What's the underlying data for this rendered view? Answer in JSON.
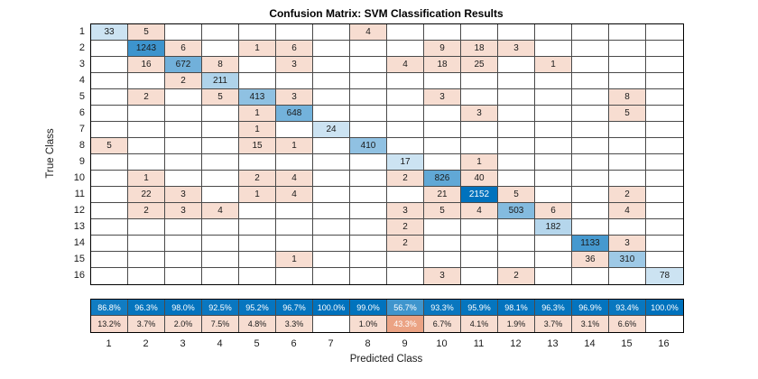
{
  "chart_data": {
    "type": "heatmap",
    "title": "Confusion Matrix: SVM Classification Results",
    "xlabel": "Predicted Class",
    "ylabel": "True Class",
    "classes": [
      "1",
      "2",
      "3",
      "4",
      "5",
      "6",
      "7",
      "8",
      "9",
      "10",
      "11",
      "12",
      "13",
      "14",
      "15",
      "16"
    ],
    "matrix": [
      [
        33,
        5,
        0,
        0,
        0,
        0,
        0,
        4,
        0,
        0,
        0,
        0,
        0,
        0,
        0,
        0
      ],
      [
        0,
        1243,
        6,
        0,
        1,
        6,
        0,
        0,
        0,
        9,
        18,
        3,
        0,
        0,
        0,
        0
      ],
      [
        0,
        16,
        672,
        8,
        0,
        3,
        0,
        0,
        4,
        18,
        25,
        0,
        1,
        0,
        0,
        0
      ],
      [
        0,
        0,
        2,
        211,
        0,
        0,
        0,
        0,
        0,
        0,
        0,
        0,
        0,
        0,
        0,
        0
      ],
      [
        0,
        2,
        0,
        5,
        413,
        3,
        0,
        0,
        0,
        3,
        0,
        0,
        0,
        0,
        8,
        0
      ],
      [
        0,
        0,
        0,
        0,
        1,
        648,
        0,
        0,
        0,
        0,
        3,
        0,
        0,
        0,
        5,
        0
      ],
      [
        0,
        0,
        0,
        0,
        1,
        0,
        24,
        0,
        0,
        0,
        0,
        0,
        0,
        0,
        0,
        0
      ],
      [
        5,
        0,
        0,
        0,
        15,
        1,
        0,
        410,
        0,
        0,
        0,
        0,
        0,
        0,
        0,
        0
      ],
      [
        0,
        0,
        0,
        0,
        0,
        0,
        0,
        0,
        17,
        0,
        1,
        0,
        0,
        0,
        0,
        0
      ],
      [
        0,
        1,
        0,
        0,
        2,
        4,
        0,
        0,
        2,
        826,
        40,
        0,
        0,
        0,
        0,
        0
      ],
      [
        0,
        22,
        3,
        0,
        1,
        4,
        0,
        0,
        0,
        21,
        2152,
        5,
        0,
        0,
        2,
        0
      ],
      [
        0,
        2,
        3,
        4,
        0,
        0,
        0,
        0,
        3,
        5,
        4,
        503,
        6,
        0,
        4,
        0
      ],
      [
        0,
        0,
        0,
        0,
        0,
        0,
        0,
        0,
        2,
        0,
        0,
        0,
        182,
        0,
        0,
        0
      ],
      [
        0,
        0,
        0,
        0,
        0,
        0,
        0,
        0,
        2,
        0,
        0,
        0,
        0,
        1133,
        3,
        0
      ],
      [
        0,
        0,
        0,
        0,
        0,
        1,
        0,
        0,
        0,
        0,
        0,
        0,
        0,
        36,
        310,
        0
      ],
      [
        0,
        0,
        0,
        0,
        0,
        0,
        0,
        0,
        0,
        3,
        0,
        2,
        0,
        0,
        0,
        78
      ]
    ],
    "column_summary": {
      "percent_correct": [
        "86.8%",
        "96.3%",
        "98.0%",
        "92.5%",
        "95.2%",
        "96.7%",
        "100.0%",
        "99.0%",
        "56.7%",
        "93.3%",
        "95.9%",
        "98.1%",
        "96.3%",
        "96.9%",
        "93.4%",
        "100.0%"
      ],
      "percent_incorrect": [
        "13.2%",
        "3.7%",
        "2.0%",
        "7.5%",
        "4.8%",
        "3.3%",
        "",
        "1.0%",
        "43.3%",
        "6.7%",
        "4.1%",
        "1.9%",
        "3.7%",
        "3.1%",
        "6.6%",
        ""
      ]
    },
    "colors": {
      "correct": "#0072BD",
      "incorrect": "#D95319"
    },
    "layout": {
      "grid": "on",
      "x_range": [
        1,
        16
      ],
      "y_range": [
        1,
        16
      ]
    }
  }
}
